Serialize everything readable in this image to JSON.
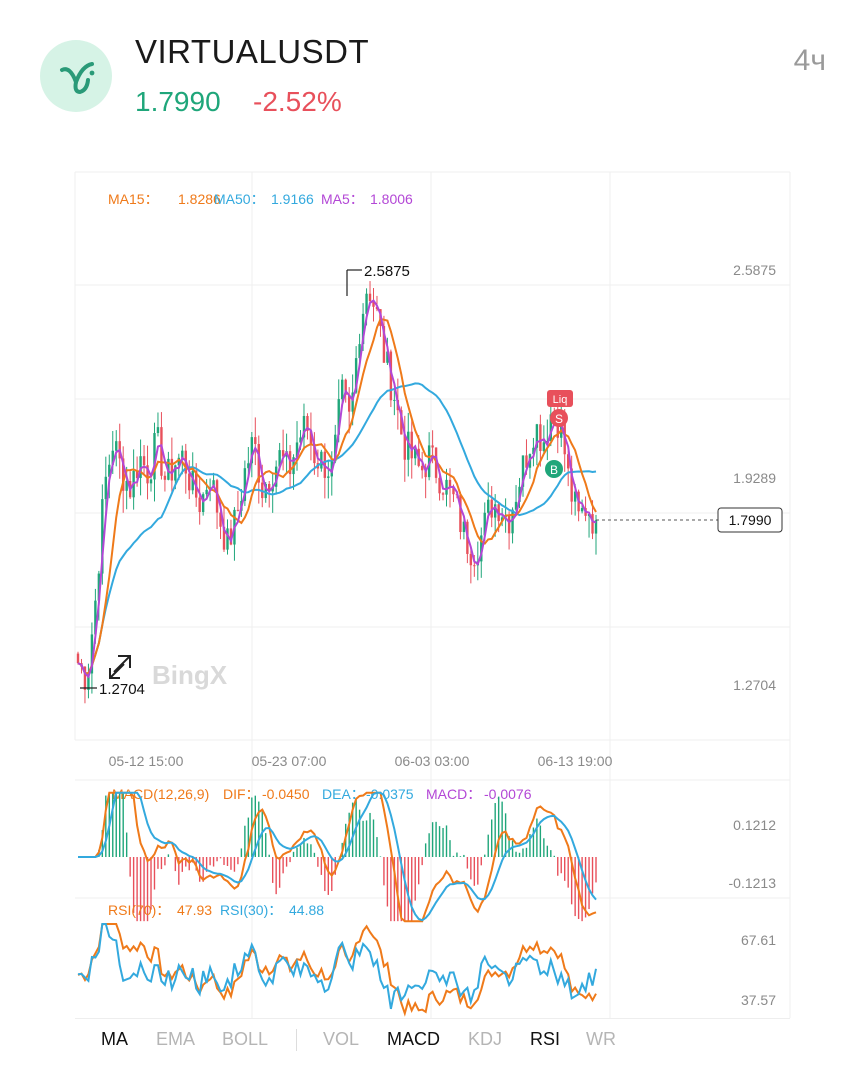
{
  "header": {
    "pair": "VIRTUALUSDT",
    "price": "1.7990",
    "change": "-2.52%",
    "interval": "4ч",
    "logo_icon": "virtual-protocol-logo"
  },
  "colors": {
    "up": "#1fa67a",
    "down": "#e8505b",
    "ma15": "#ef7a1a",
    "ma50": "#33a9de",
    "ma5": "#b347d6",
    "grid": "#efefef"
  },
  "main_chart": {
    "legend": {
      "ma15_label": "MA15：",
      "ma15_value": "1.8286",
      "ma50_label": "MA50：",
      "ma50_value": "1.9166",
      "ma5_label": "MA5：",
      "ma5_value": "1.8006"
    },
    "high_label": "2.5875",
    "low_label": "1.2704",
    "current_price_tag": "1.7990",
    "y_ticks": [
      "2.5875",
      "1.9289",
      "1.2704"
    ],
    "x_ticks": [
      "05-12 15:00",
      "05-23 07:00",
      "06-03 03:00",
      "06-13 19:00"
    ],
    "watermark": "BingX",
    "markers": {
      "liq": "Liq",
      "sell": "S",
      "buy": "B"
    }
  },
  "chart_data": {
    "type": "candlestick",
    "interval": "4h",
    "ylim": [
      1.2704,
      2.5875
    ],
    "series": [
      {
        "name": "MA15",
        "last": 1.8286
      },
      {
        "name": "MA50",
        "last": 1.9166
      },
      {
        "name": "MA5",
        "last": 1.8006
      }
    ],
    "close_path": [
      1.35,
      1.3,
      1.55,
      1.9,
      2.05,
      1.95,
      1.9,
      2.0,
      1.95,
      2.05,
      1.92,
      1.98,
      2.0,
      1.9,
      1.85,
      1.95,
      1.82,
      1.72,
      1.8,
      1.95,
      2.05,
      1.9,
      1.95,
      2.0,
      1.95,
      2.05,
      2.1,
      2.0,
      1.98,
      1.95,
      2.2,
      2.1,
      2.4,
      2.55,
      2.45,
      2.3,
      2.2,
      2.05,
      2.0,
      1.95,
      2.0,
      1.95,
      1.9,
      1.85,
      1.75,
      1.7,
      1.75,
      1.85,
      1.85,
      1.8,
      1.9,
      2.0,
      2.1,
      2.05,
      2.15,
      2.1,
      1.9,
      1.8,
      1.85,
      1.78
    ]
  },
  "macd": {
    "label": "MACD(12,26,9)",
    "dif_label": "DIF：",
    "dif_value": "-0.0450",
    "dea_label": "DEA：",
    "dea_value": "-0.0375",
    "macd_label": "MACD：",
    "macd_value": "-0.0076",
    "y_ticks": [
      "0.1212",
      "-0.1213"
    ]
  },
  "rsi": {
    "rsi70_label": "RSI(70)：",
    "rsi70_value": "47.93",
    "rsi30_label": "RSI(30)：",
    "rsi30_value": "44.88",
    "y_ticks": [
      "67.61",
      "37.57"
    ]
  },
  "indicator_tabs": [
    {
      "label": "MA",
      "active": true
    },
    {
      "label": "EMA",
      "active": false
    },
    {
      "label": "BOLL",
      "active": false
    },
    {
      "label": "VOL",
      "active": false
    },
    {
      "label": "MACD",
      "active": true
    },
    {
      "label": "KDJ",
      "active": false
    },
    {
      "label": "RSI",
      "active": true
    },
    {
      "label": "WR",
      "active": false
    }
  ]
}
